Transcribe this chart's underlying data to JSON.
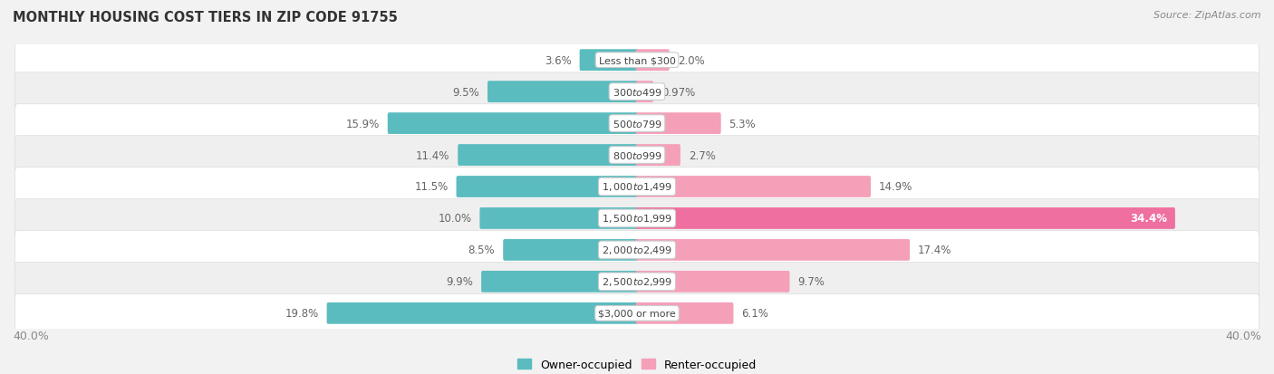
{
  "title": "Monthly Housing Cost Tiers in Zip Code 91755",
  "source": "Source: ZipAtlas.com",
  "categories": [
    "Less than $300",
    "$300 to $499",
    "$500 to $799",
    "$800 to $999",
    "$1,000 to $1,499",
    "$1,500 to $1,999",
    "$2,000 to $2,499",
    "$2,500 to $2,999",
    "$3,000 or more"
  ],
  "owner_values": [
    3.6,
    9.5,
    15.9,
    11.4,
    11.5,
    10.0,
    8.5,
    9.9,
    19.8
  ],
  "renter_values": [
    2.0,
    0.97,
    5.3,
    2.7,
    14.9,
    34.4,
    17.4,
    9.7,
    6.1
  ],
  "owner_label_strs": [
    "3.6%",
    "9.5%",
    "15.9%",
    "11.4%",
    "11.5%",
    "10.0%",
    "8.5%",
    "9.9%",
    "19.8%"
  ],
  "renter_label_strs": [
    "2.0%",
    "0.97%",
    "5.3%",
    "2.7%",
    "14.9%",
    "34.4%",
    "17.4%",
    "9.7%",
    "6.1%"
  ],
  "owner_color": "#5BBCBF",
  "renter_color": "#F4A0B8",
  "renter_color_strong": "#EE6FA0",
  "axis_limit": 40.0,
  "bg_color": "#F2F2F2",
  "row_colors": [
    "#FFFFFF",
    "#EFEFEF"
  ],
  "label_color": "#666666",
  "title_color": "#333333",
  "axis_label_color": "#888888",
  "pill_bg": "#FFFFFF",
  "pill_edge": "#DDDDDD",
  "legend_owner": "Owner-occupied",
  "legend_renter": "Renter-occupied"
}
